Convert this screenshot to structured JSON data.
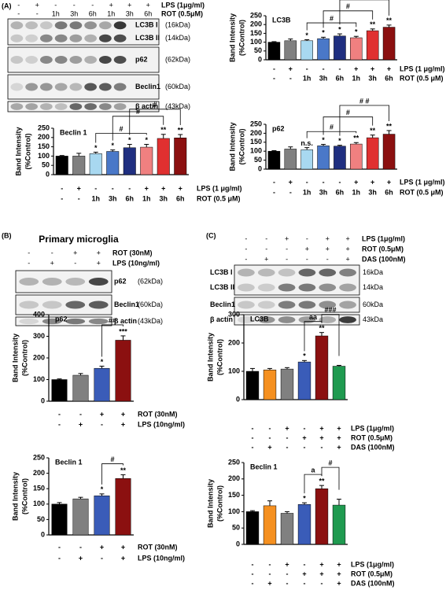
{
  "panel_labels": [
    "(A)",
    "(B)",
    "(C)"
  ],
  "panel_b_title": "Primary microglia",
  "blots": [
    {
      "rows": [
        {
          "label": "LPS (1μg/ml)",
          "marks": [
            "-",
            "+",
            "-",
            "-",
            "-",
            "+",
            "+",
            "+"
          ]
        },
        {
          "label": "ROT (0.5μM)",
          "marks": [
            "-",
            "-",
            "1h",
            "3h",
            "6h",
            "1h",
            "3h",
            "6h"
          ]
        }
      ],
      "bands": [
        {
          "labels": [
            {
              "name": "LC3B I",
              "size": "(16kDa)"
            },
            {
              "name": "LC3B II",
              "size": "(14kDa)"
            }
          ]
        },
        {
          "labels": [
            {
              "name": "p62",
              "size": "(62kDa)"
            }
          ]
        },
        {
          "labels": [
            {
              "name": "Beclin1",
              "size": "(60kDa)"
            }
          ]
        },
        {
          "labels": [
            {
              "name": "β actin",
              "size": "(43kDa)"
            }
          ]
        }
      ]
    },
    {
      "rows": [
        {
          "label": "ROT (30nM)",
          "marks": [
            "-",
            "-",
            "+",
            "+"
          ]
        },
        {
          "label": "LPS (10ng/ml)",
          "marks": [
            "-",
            "+",
            "-",
            "+"
          ]
        }
      ],
      "bands": [
        {
          "labels": [
            {
              "name": "p62",
              "size": "(62kDa)"
            }
          ]
        },
        {
          "labels": [
            {
              "name": "Beclin1",
              "size": "(60kDa)"
            }
          ]
        },
        {
          "labels": [
            {
              "name": "β actin",
              "size": "(43kDa)"
            }
          ]
        }
      ]
    },
    {
      "rows": [
        {
          "label": "LPS (1μg/ml)",
          "marks": [
            "-",
            "-",
            "+",
            "-",
            "+",
            "+"
          ]
        },
        {
          "label": "ROT (0.5μM)",
          "marks": [
            "-",
            "-",
            "-",
            "+",
            "+",
            "+"
          ]
        },
        {
          "label": "DAS (100nM)",
          "marks": [
            "-",
            "+",
            "-",
            "-",
            "-",
            "+"
          ]
        }
      ],
      "bands": [
        {
          "labels": [
            {
              "name": "LC3B I",
              "size": "16kDa"
            },
            {
              "name": "LC3B II",
              "size": "14kDa"
            }
          ]
        },
        {
          "labels": [
            {
              "name": "Beclin1",
              "size": "60kDa"
            }
          ]
        },
        {
          "labels": [
            {
              "name": "β actin",
              "size": "43kDa"
            }
          ]
        }
      ]
    }
  ],
  "chart_data": [
    {
      "type": "bar",
      "title": "LC3B",
      "ylabel": [
        "Band Intensity",
        "(%Control)"
      ],
      "values": [
        100,
        108,
        108,
        120,
        135,
        125,
        165,
        185
      ],
      "errors": [
        3,
        10,
        6,
        8,
        12,
        8,
        10,
        12
      ],
      "colors": [
        "#000000",
        "#808080",
        "#a8d8f0",
        "#4a78c8",
        "#1f2f80",
        "#f08080",
        "#e03030",
        "#8b1010"
      ],
      "ylim": [
        0,
        250
      ],
      "yticks": [
        0,
        50,
        100,
        150,
        200,
        250
      ],
      "annotations": [
        null,
        null,
        "*",
        "*",
        "*",
        "*",
        "**",
        "**"
      ],
      "brackets": [
        "#",
        "#",
        "#"
      ],
      "treatments": [
        {
          "label": "LPS (1 μg/ml)",
          "marks": [
            "-",
            "+",
            "-",
            "-",
            "-",
            "+",
            "+",
            "+"
          ]
        },
        {
          "label": "ROT (0.5 μM)",
          "marks": [
            "-",
            "-",
            "1h",
            "3h",
            "6h",
            "1h",
            "3h",
            "6h"
          ]
        }
      ]
    },
    {
      "type": "bar",
      "title": "Beclin 1",
      "ylabel": [
        "Band Intensity",
        "(%Control)"
      ],
      "values": [
        100,
        100,
        113,
        125,
        145,
        148,
        195,
        198
      ],
      "errors": [
        3,
        15,
        8,
        8,
        18,
        15,
        22,
        18
      ],
      "colors": [
        "#000000",
        "#808080",
        "#a8d8f0",
        "#4a78c8",
        "#1f2f80",
        "#f08080",
        "#e03030",
        "#8b1010"
      ],
      "ylim": [
        0,
        250
      ],
      "yticks": [
        0,
        50,
        100,
        150,
        200,
        250
      ],
      "annotations": [
        null,
        null,
        "*",
        "*",
        "*",
        "*",
        "**",
        "**"
      ],
      "brackets": [
        "#",
        "#",
        "#"
      ],
      "treatments": [
        {
          "label": "LPS (1 μg/ml)",
          "marks": [
            "-",
            "+",
            "-",
            "-",
            "-",
            "+",
            "+",
            "+"
          ]
        },
        {
          "label": "ROT (0.5 μM)",
          "marks": [
            "-",
            "-",
            "1h",
            "3h",
            "6h",
            "1h",
            "3h",
            "6h"
          ]
        }
      ]
    },
    {
      "type": "bar",
      "title": "p62",
      "ylabel": [
        "Band Intensity",
        "(%Control)"
      ],
      "values": [
        100,
        112,
        108,
        130,
        128,
        140,
        175,
        195
      ],
      "errors": [
        3,
        12,
        12,
        8,
        5,
        8,
        15,
        20
      ],
      "colors": [
        "#000000",
        "#808080",
        "#a8d8f0",
        "#4a78c8",
        "#1f2f80",
        "#f08080",
        "#e03030",
        "#8b1010"
      ],
      "ylim": [
        0,
        250
      ],
      "yticks": [
        0,
        50,
        100,
        150,
        200,
        250
      ],
      "annotations": [
        null,
        null,
        "n.s.",
        "*",
        "*",
        "**",
        "**",
        "**"
      ],
      "brackets": [
        "#",
        "#",
        "# #"
      ],
      "treatments": [
        {
          "label": "LPS (1 μg/ml)",
          "marks": [
            "-",
            "+",
            "-",
            "-",
            "-",
            "+",
            "+",
            "+"
          ]
        },
        {
          "label": "ROT (0.5 μM)",
          "marks": [
            "-",
            "-",
            "1h",
            "3h",
            "6h",
            "1h",
            "3h",
            "6h"
          ]
        }
      ]
    },
    {
      "type": "bar",
      "title": "p62",
      "ylabel": [
        "Band Intensity",
        "(%Control)"
      ],
      "values": [
        100,
        120,
        152,
        282
      ],
      "errors": [
        3,
        8,
        10,
        20
      ],
      "colors": [
        "#000000",
        "#808080",
        "#3a5cb8",
        "#8b1010"
      ],
      "ylim": [
        0,
        400
      ],
      "yticks": [
        0,
        100,
        200,
        300,
        400
      ],
      "annotations": [
        null,
        null,
        "*",
        "***"
      ],
      "brackets": [
        "##"
      ],
      "treatments": [
        {
          "label": "ROT (30nM)",
          "marks": [
            "-",
            "-",
            "+",
            "+"
          ]
        },
        {
          "label": "LPS (10ng/ml)",
          "marks": [
            "-",
            "+",
            "-",
            "+"
          ]
        }
      ]
    },
    {
      "type": "bar",
      "title": "Beclin 1",
      "ylabel": [
        "Band Intensity",
        "(%Control)"
      ],
      "values": [
        100,
        117,
        127,
        183
      ],
      "errors": [
        5,
        5,
        6,
        12
      ],
      "colors": [
        "#000000",
        "#808080",
        "#3a5cb8",
        "#8b1010"
      ],
      "ylim": [
        0,
        250
      ],
      "yticks": [
        0,
        50,
        100,
        150,
        200,
        250
      ],
      "annotations": [
        null,
        null,
        "*",
        "**"
      ],
      "brackets": [
        "#"
      ],
      "treatments": [
        {
          "label": "ROT (30nM)",
          "marks": [
            "-",
            "-",
            "+",
            "+"
          ]
        },
        {
          "label": "LPS (10ng/ml)",
          "marks": [
            "-",
            "+",
            "-",
            "+"
          ]
        }
      ]
    },
    {
      "type": "bar",
      "title": "LC3B",
      "ylabel": [
        "Band Intensity",
        "(%Control)"
      ],
      "values": [
        100,
        105,
        108,
        133,
        225,
        118
      ],
      "errors": [
        10,
        5,
        5,
        5,
        12,
        3
      ],
      "colors": [
        "#000000",
        "#f59020",
        "#808080",
        "#3a5cb8",
        "#8b1010",
        "#1f9a50"
      ],
      "ylim": [
        0,
        300
      ],
      "yticks": [
        0,
        100,
        200,
        300
      ],
      "annotations": [
        null,
        null,
        null,
        "*",
        "**",
        null
      ],
      "brackets": [
        "aa",
        "###"
      ],
      "treatments": [
        {
          "label": "LPS (1μg/ml)",
          "marks": [
            "-",
            "-",
            "+",
            "-",
            "+",
            "+"
          ]
        },
        {
          "label": "ROT (0.5μM)",
          "marks": [
            "-",
            "-",
            "-",
            "+",
            "+",
            "+"
          ]
        },
        {
          "label": "DAS (100nM)",
          "marks": [
            "-",
            "+",
            "-",
            "-",
            "-",
            "+"
          ]
        }
      ]
    },
    {
      "type": "bar",
      "title": "Beclin 1",
      "ylabel": [
        "Band Intensity",
        "(%Control)"
      ],
      "values": [
        100,
        118,
        95,
        122,
        170,
        120
      ],
      "errors": [
        3,
        15,
        5,
        5,
        10,
        18
      ],
      "colors": [
        "#000000",
        "#f59020",
        "#808080",
        "#3a5cb8",
        "#8b1010",
        "#1f9a50"
      ],
      "ylim": [
        0,
        250
      ],
      "yticks": [
        0,
        50,
        100,
        150,
        200,
        250
      ],
      "annotations": [
        null,
        null,
        null,
        "*",
        "**",
        null
      ],
      "brackets": [
        "a",
        "#"
      ],
      "treatments": [
        {
          "label": "LPS (1μg/ml)",
          "marks": [
            "-",
            "-",
            "+",
            "-",
            "+",
            "+"
          ]
        },
        {
          "label": "ROT (0.5μM)",
          "marks": [
            "-",
            "-",
            "-",
            "+",
            "+",
            "+"
          ]
        },
        {
          "label": "DAS (100nM)",
          "marks": [
            "-",
            "+",
            "-",
            "-",
            "-",
            "+"
          ]
        }
      ]
    }
  ]
}
